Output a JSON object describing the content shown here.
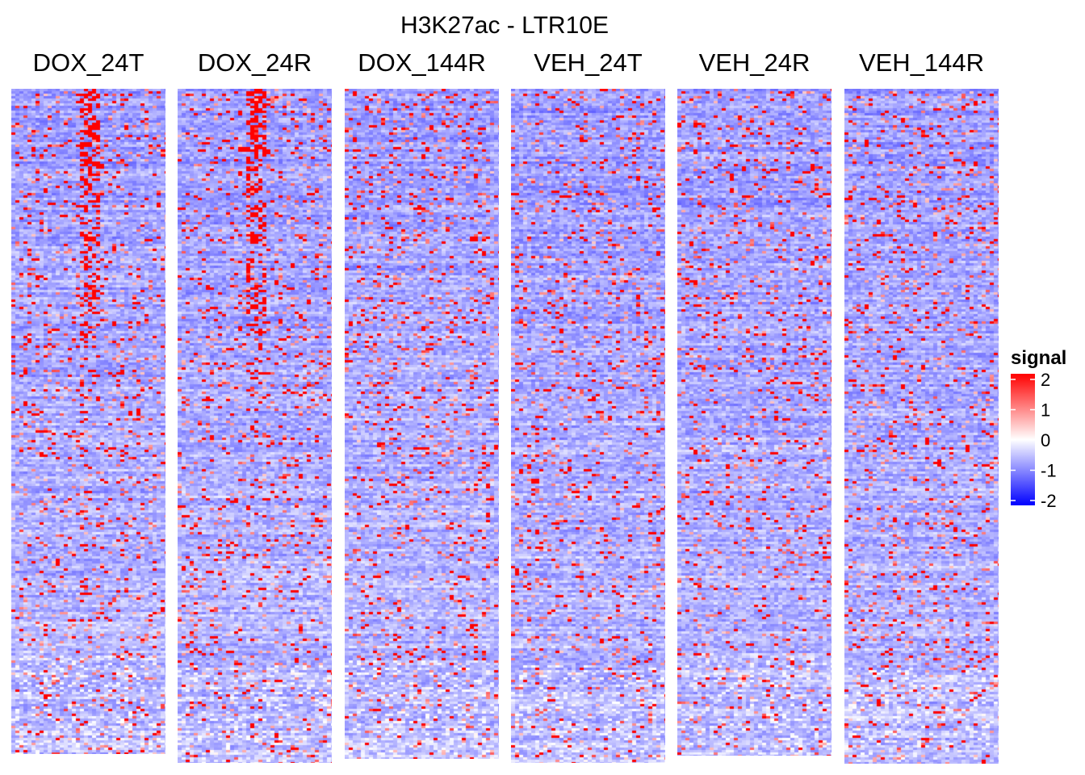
{
  "chart_data": {
    "type": "heatmap",
    "title": "H3K27ac - LTR10E",
    "facets": [
      "DOX_24T",
      "DOX_24R",
      "DOX_144R",
      "VEH_24T",
      "VEH_24R",
      "VEH_144R"
    ],
    "value_range": [
      -2,
      2
    ],
    "color_scale": {
      "low": "#0000ff",
      "mid": "#ffffff",
      "high": "#ff0000"
    },
    "legend": {
      "title": "signal",
      "ticks": [
        2,
        1,
        0,
        -1,
        -2
      ],
      "tick_labels": [
        "2",
        "1",
        "0",
        "-1",
        "-2"
      ],
      "position": "right"
    },
    "grid": false
  }
}
